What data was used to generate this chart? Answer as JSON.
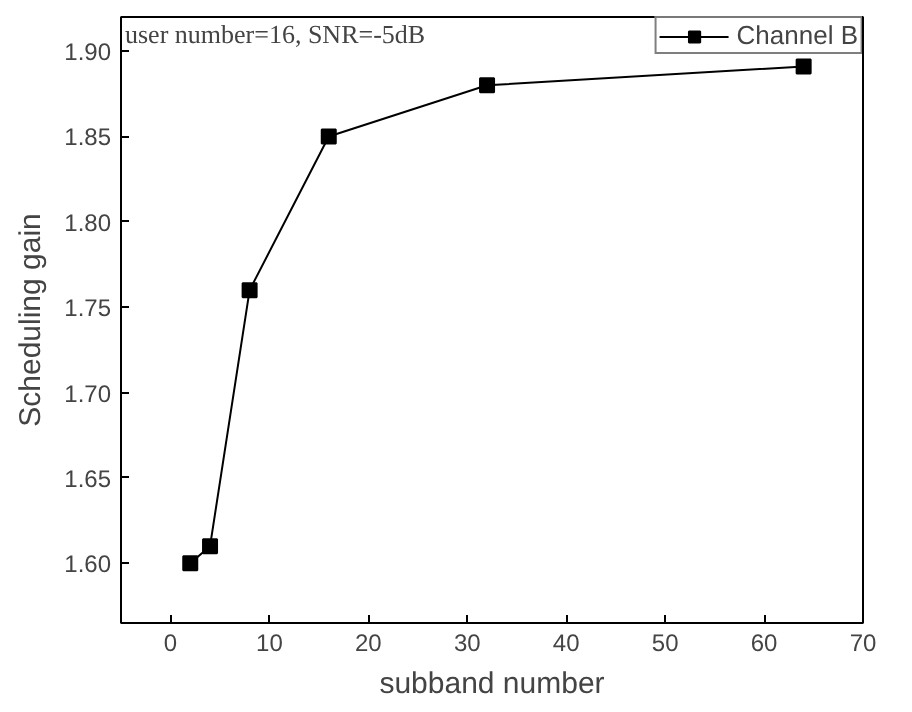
{
  "chart_data": {
    "type": "line",
    "xlabel": "subband number",
    "ylabel": "Scheduling gain",
    "x": [
      2,
      4,
      8,
      16,
      32,
      64
    ],
    "series": [
      {
        "name": "Channel B",
        "color": "#000000",
        "values": [
          1.6,
          1.61,
          1.76,
          1.85,
          1.88,
          1.891
        ]
      }
    ],
    "xlim": [
      -5,
      70
    ],
    "xticks": [
      0,
      10,
      20,
      30,
      40,
      50,
      60,
      70
    ],
    "ylim": [
      1.565,
      1.92
    ],
    "yticks": [
      {
        "value": 1.6,
        "label": "1.60"
      },
      {
        "value": 1.65,
        "label": "1.65"
      },
      {
        "value": 1.7,
        "label": "1.70"
      },
      {
        "value": 1.75,
        "label": "1.75"
      },
      {
        "value": 1.8,
        "label": "1.80"
      },
      {
        "value": 1.85,
        "label": "1.85"
      },
      {
        "value": 1.9,
        "label": "1.90"
      }
    ],
    "marker": "square",
    "line_style": "solid",
    "grid": false,
    "legend": "top right",
    "annotations": [
      "user number=16, SNR=-5dB"
    ]
  }
}
